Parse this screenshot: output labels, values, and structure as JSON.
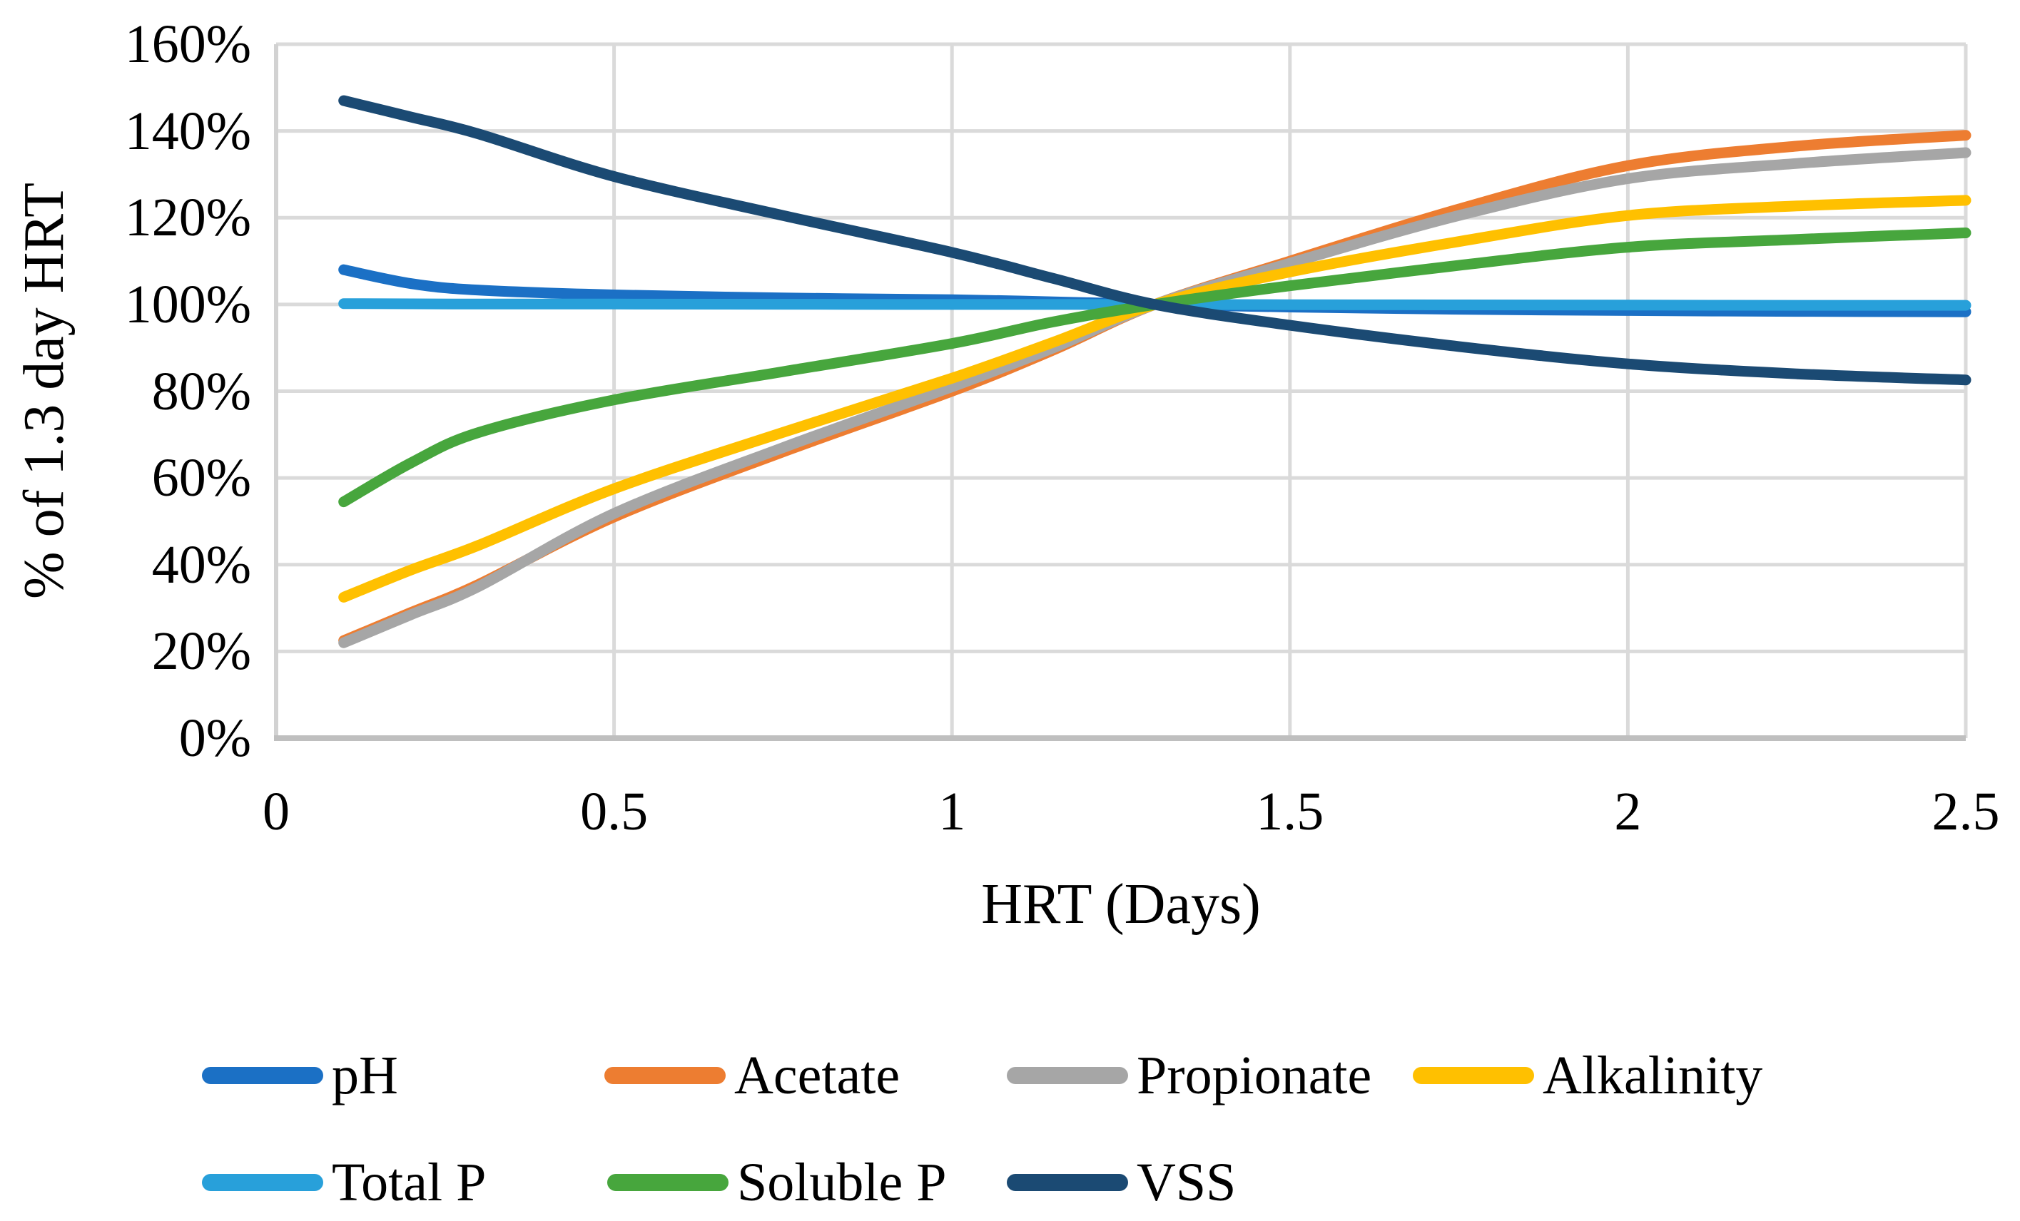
{
  "chart_data": {
    "type": "line",
    "title": "",
    "xlabel": "HRT (Days)",
    "ylabel": "% of 1.3 day HRT",
    "grid": true,
    "legend_position": "bottom",
    "xlim": [
      0,
      2.5
    ],
    "ylim": [
      "0%",
      "160%"
    ],
    "x_ticks": [
      {
        "label": "0",
        "value": 0
      },
      {
        "label": "0.5",
        "value": 0.5
      },
      {
        "label": "1",
        "value": 1
      },
      {
        "label": "1.5",
        "value": 1.5
      },
      {
        "label": "2",
        "value": 2
      },
      {
        "label": "2.5",
        "value": 2.5
      }
    ],
    "y_ticks": [
      {
        "label": "160%",
        "value": 160
      },
      {
        "label": "140%",
        "value": 140
      },
      {
        "label": "120%",
        "value": 120
      },
      {
        "label": "100%",
        "value": 100
      },
      {
        "label": "80%",
        "value": 80
      },
      {
        "label": "60%",
        "value": 60
      },
      {
        "label": "40%",
        "value": 40
      },
      {
        "label": "20%",
        "value": 20
      },
      {
        "label": "0%",
        "value": 0
      }
    ],
    "x": [
      0.1,
      0.2,
      0.3,
      0.5,
      0.75,
      1.0,
      1.15,
      1.3,
      1.5,
      1.75,
      2.0,
      2.25,
      2.5
    ],
    "series": [
      {
        "name": "pH",
        "color": "#1B70C5",
        "values": [
          108,
          104.8,
          103.3,
          102.2,
          101.5,
          101.1,
          100.6,
          100,
          99.4,
          98.9,
          98.6,
          98.4,
          98.3
        ]
      },
      {
        "name": "Acetate",
        "color": "#ED7D31",
        "values": [
          22.5,
          29,
          35.5,
          51,
          66,
          80,
          89.5,
          100,
          110,
          122,
          132,
          136.5,
          139
        ]
      },
      {
        "name": "Propionate",
        "color": "#A6A6A6",
        "values": [
          22,
          28.5,
          35,
          51.8,
          67,
          81,
          90,
          100,
          109.5,
          120.5,
          129,
          132.5,
          135
        ]
      },
      {
        "name": "Alkalinity",
        "color": "#FFC000",
        "values": [
          32.5,
          38.8,
          44.5,
          57.5,
          70.5,
          83,
          91.3,
          100,
          107.5,
          114.5,
          120.5,
          122.7,
          124
        ]
      },
      {
        "name": "Total P",
        "color": "#28A0DA",
        "values": [
          100.2,
          100.15,
          100.1,
          100.1,
          100.05,
          100,
          100,
          100,
          99.95,
          99.9,
          99.85,
          99.8,
          99.8
        ]
      },
      {
        "name": "Soluble P",
        "color": "#47A63D",
        "values": [
          54.5,
          63.5,
          70.5,
          78,
          84.5,
          91,
          96,
          100,
          104.3,
          109,
          113.2,
          115,
          116.5
        ]
      },
      {
        "name": "VSS",
        "color": "#1B4A73",
        "values": [
          147,
          143.2,
          139.3,
          129.5,
          120.5,
          112,
          106,
          100,
          95.2,
          90.3,
          86.3,
          84,
          82.6
        ]
      }
    ],
    "all_series_cross": "100% at HRT = 1.3 days"
  }
}
